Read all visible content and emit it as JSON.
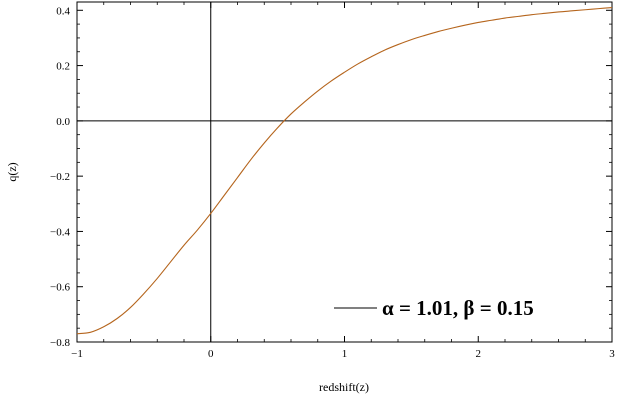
{
  "chart_data": {
    "type": "line",
    "xlabel": "redshift(z)",
    "ylabel": "q(z)",
    "xlim": [
      -1,
      3
    ],
    "ylim": [
      -0.8,
      0.43
    ],
    "x_ticks": [
      -1,
      0,
      1,
      2,
      3
    ],
    "x_tick_labels": [
      "−1",
      "0",
      "1",
      "2",
      "3"
    ],
    "y_ticks": [
      -0.8,
      -0.6,
      -0.4,
      -0.2,
      0.0,
      0.2,
      0.4
    ],
    "y_tick_labels": [
      "−0.8",
      "−0.6",
      "−0.4",
      "−0.2",
      "0.0",
      "0.2",
      "0.4"
    ],
    "reference_lines": {
      "x": 0,
      "y": 0
    },
    "legend_position": "bottom-right",
    "series": [
      {
        "name": "α = 1.01, β = 0.15",
        "color": "#b5651d",
        "x": [
          -1.0,
          -0.9,
          -0.8,
          -0.7,
          -0.6,
          -0.5,
          -0.4,
          -0.3,
          -0.2,
          -0.1,
          0.0,
          0.1,
          0.2,
          0.3,
          0.4,
          0.5,
          0.6,
          0.7,
          0.8,
          0.9,
          1.0,
          1.1,
          1.2,
          1.3,
          1.4,
          1.5,
          1.6,
          1.7,
          1.8,
          1.9,
          2.0,
          2.1,
          2.2,
          2.3,
          2.4,
          2.5,
          2.6,
          2.7,
          2.8,
          2.9,
          3.0
        ],
        "y": [
          -0.77,
          -0.765,
          -0.745,
          -0.715,
          -0.675,
          -0.625,
          -0.57,
          -0.51,
          -0.45,
          -0.395,
          -0.335,
          -0.27,
          -0.205,
          -0.14,
          -0.08,
          -0.025,
          0.025,
          0.068,
          0.108,
          0.144,
          0.176,
          0.206,
          0.232,
          0.256,
          0.276,
          0.294,
          0.309,
          0.323,
          0.335,
          0.346,
          0.356,
          0.364,
          0.372,
          0.378,
          0.384,
          0.389,
          0.394,
          0.398,
          0.402,
          0.406,
          0.41
        ]
      }
    ]
  }
}
